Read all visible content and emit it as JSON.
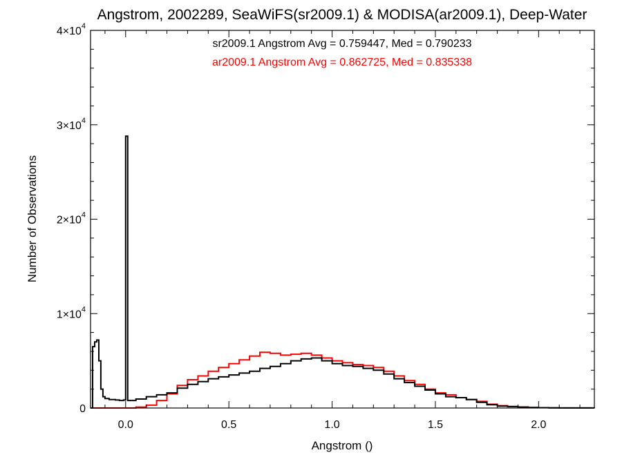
{
  "chart_data": {
    "type": "line",
    "title": "Angstrom, 2002289, SeaWiFS(sr2009.1) & MODISA(ar2009.1), Deep-Water",
    "xlabel": "Angstrom ()",
    "ylabel": "Number of Observations",
    "xlim": [
      -0.17,
      2.27
    ],
    "ylim": [
      0,
      40000
    ],
    "x_ticks": [
      0.0,
      0.5,
      1.0,
      1.5,
      2.0
    ],
    "x_tick_labels": [
      "0.0",
      "0.5",
      "1.0",
      "1.5",
      "2.0"
    ],
    "y_ticks": [
      0,
      10000,
      20000,
      30000,
      40000
    ],
    "y_tick_labels": [
      {
        "mantissa": "0",
        "exp": ""
      },
      {
        "mantissa": "1×10",
        "exp": "4"
      },
      {
        "mantissa": "2×10",
        "exp": "4"
      },
      {
        "mantissa": "3×10",
        "exp": "4"
      },
      {
        "mantissa": "4×10",
        "exp": "4"
      }
    ],
    "annotations": [
      {
        "text": "sr2009.1 Angstrom Avg = 0.759447, Med = 0.790233",
        "color": "#000000"
      },
      {
        "text": "ar2009.1 Angstrom Avg = 0.862725, Med = 0.835338",
        "color": "#ff0000"
      }
    ],
    "series": [
      {
        "color": "#ff0000",
        "points": [
          [
            -0.17,
            0
          ],
          [
            0.0,
            0
          ],
          [
            0.05,
            100
          ],
          [
            0.1,
            300
          ],
          [
            0.15,
            800
          ],
          [
            0.2,
            1500
          ],
          [
            0.25,
            2400
          ],
          [
            0.3,
            3000
          ],
          [
            0.35,
            3400
          ],
          [
            0.4,
            3900
          ],
          [
            0.45,
            4300
          ],
          [
            0.5,
            4700
          ],
          [
            0.55,
            5100
          ],
          [
            0.6,
            5500
          ],
          [
            0.65,
            5900
          ],
          [
            0.7,
            5800
          ],
          [
            0.75,
            5600
          ],
          [
            0.8,
            5700
          ],
          [
            0.85,
            5800
          ],
          [
            0.9,
            5600
          ],
          [
            0.95,
            5300
          ],
          [
            1.0,
            5000
          ],
          [
            1.05,
            4800
          ],
          [
            1.1,
            4600
          ],
          [
            1.15,
            4500
          ],
          [
            1.2,
            4300
          ],
          [
            1.25,
            3900
          ],
          [
            1.3,
            3400
          ],
          [
            1.35,
            2900
          ],
          [
            1.4,
            2500
          ],
          [
            1.45,
            2000
          ],
          [
            1.5,
            1600
          ],
          [
            1.55,
            1400
          ],
          [
            1.6,
            1100
          ],
          [
            1.65,
            900
          ],
          [
            1.7,
            700
          ],
          [
            1.75,
            400
          ],
          [
            1.8,
            250
          ],
          [
            1.85,
            150
          ],
          [
            1.9,
            100
          ],
          [
            1.95,
            60
          ],
          [
            2.0,
            40
          ],
          [
            2.05,
            20
          ],
          [
            2.1,
            10
          ],
          [
            2.27,
            0
          ]
        ]
      },
      {
        "color": "#000000",
        "points": [
          [
            -0.17,
            0
          ],
          [
            -0.16,
            6500
          ],
          [
            -0.15,
            7000
          ],
          [
            -0.14,
            7200
          ],
          [
            -0.13,
            5000
          ],
          [
            -0.12,
            2000
          ],
          [
            -0.11,
            1200
          ],
          [
            -0.1,
            1000
          ],
          [
            -0.08,
            900
          ],
          [
            -0.05,
            850
          ],
          [
            -0.03,
            800
          ],
          [
            -0.01,
            850
          ],
          [
            0.0,
            28800
          ],
          [
            0.01,
            800
          ],
          [
            0.05,
            950
          ],
          [
            0.1,
            1200
          ],
          [
            0.15,
            1400
          ],
          [
            0.2,
            1600
          ],
          [
            0.25,
            2100
          ],
          [
            0.3,
            2500
          ],
          [
            0.35,
            2800
          ],
          [
            0.4,
            3100
          ],
          [
            0.45,
            3300
          ],
          [
            0.5,
            3500
          ],
          [
            0.55,
            3700
          ],
          [
            0.6,
            3900
          ],
          [
            0.65,
            4200
          ],
          [
            0.7,
            4400
          ],
          [
            0.75,
            4700
          ],
          [
            0.8,
            5000
          ],
          [
            0.85,
            5200
          ],
          [
            0.9,
            5300
          ],
          [
            0.95,
            5000
          ],
          [
            1.0,
            4700
          ],
          [
            1.05,
            4500
          ],
          [
            1.1,
            4400
          ],
          [
            1.15,
            4200
          ],
          [
            1.2,
            4000
          ],
          [
            1.25,
            3600
          ],
          [
            1.3,
            3100
          ],
          [
            1.35,
            2700
          ],
          [
            1.4,
            2300
          ],
          [
            1.45,
            1900
          ],
          [
            1.5,
            1500
          ],
          [
            1.55,
            1200
          ],
          [
            1.6,
            1100
          ],
          [
            1.65,
            900
          ],
          [
            1.7,
            600
          ],
          [
            1.75,
            350
          ],
          [
            1.8,
            200
          ],
          [
            1.85,
            150
          ],
          [
            1.9,
            100
          ],
          [
            1.95,
            60
          ],
          [
            2.0,
            40
          ],
          [
            2.05,
            20
          ],
          [
            2.1,
            10
          ],
          [
            2.27,
            0
          ]
        ]
      }
    ]
  }
}
